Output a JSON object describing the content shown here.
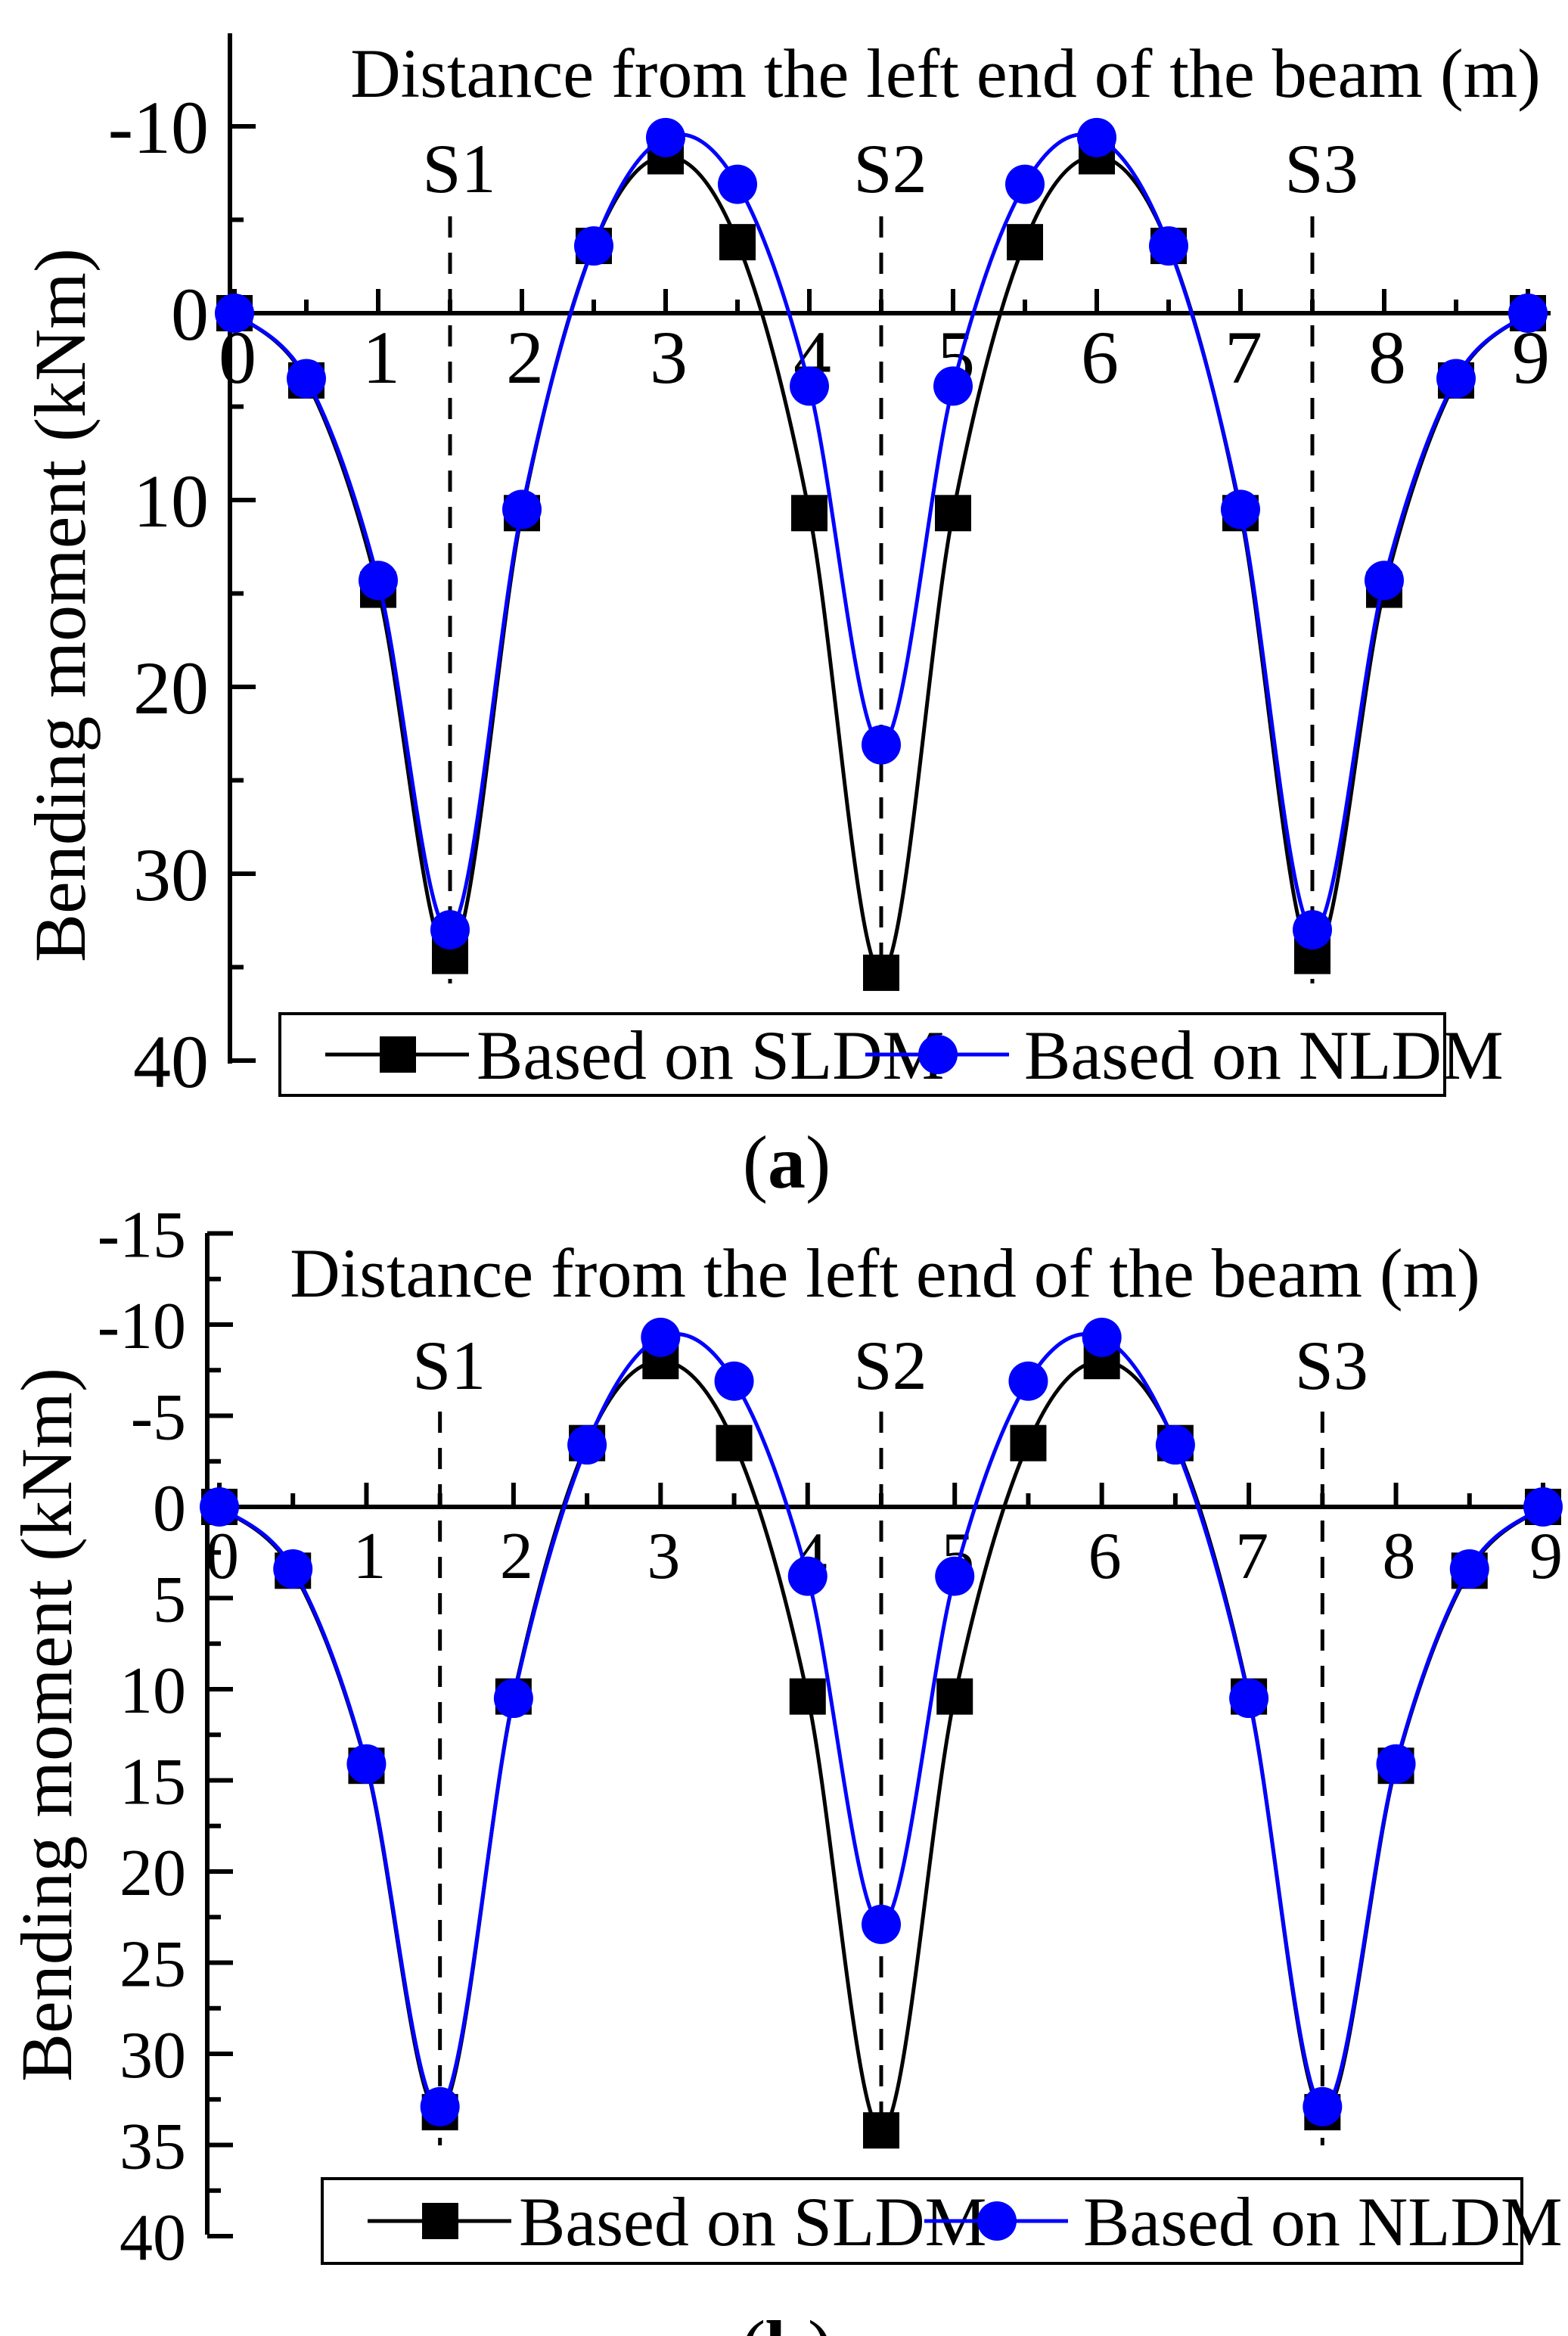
{
  "chart_data": [
    {
      "type": "line",
      "panel_label": "a",
      "title": "Distance from the left end of the beam (m)",
      "xlabel": "Distance from the left end of the beam (m)",
      "ylabel": "Bending moment (kNm)",
      "xlim": [
        0,
        9
      ],
      "ylim": [
        -15,
        40
      ],
      "y_inverted": true,
      "xticks": [
        "0",
        "1",
        "2",
        "3",
        "4",
        "5",
        "6",
        "7",
        "8",
        "9"
      ],
      "yticks": [
        {
          "value": -10,
          "label": "-10"
        },
        {
          "value": 0,
          "label": "0"
        },
        {
          "value": 10,
          "label": "10"
        },
        {
          "value": 20,
          "label": "20"
        },
        {
          "value": 30,
          "label": "30"
        },
        {
          "value": 40,
          "label": "40"
        }
      ],
      "supports": [
        {
          "name": "S1",
          "x": 1.5
        },
        {
          "name": "S2",
          "x": 4.5
        },
        {
          "name": "S3",
          "x": 7.5
        }
      ],
      "series": [
        {
          "name": "Based on SLDM",
          "color": "#000000",
          "marker": "square",
          "x": [
            0,
            0.5,
            1,
            1.5,
            2,
            2.5,
            3,
            3.5,
            4,
            4.5,
            5,
            5.5,
            6,
            6.5,
            7,
            7.5,
            8,
            8.5,
            9
          ],
          "y": [
            0,
            3.6,
            14.8,
            34.4,
            10.7,
            -3.6,
            -8.4,
            -3.8,
            10.7,
            35.3,
            10.7,
            -3.8,
            -8.4,
            -3.6,
            10.7,
            34.4,
            14.8,
            3.6,
            0
          ]
        },
        {
          "name": "Based on NLDM",
          "color": "#0000ff",
          "marker": "circle",
          "x": [
            0,
            0.5,
            1,
            1.5,
            2,
            2.5,
            3,
            3.5,
            4,
            4.5,
            5,
            5.5,
            6,
            6.5,
            7,
            7.5,
            8,
            8.5,
            9
          ],
          "y": [
            0,
            3.5,
            14.3,
            33.0,
            10.5,
            -3.6,
            -9.4,
            -6.9,
            3.9,
            23.1,
            3.9,
            -6.9,
            -9.4,
            -3.6,
            10.5,
            33.0,
            14.3,
            3.5,
            0
          ]
        }
      ]
    },
    {
      "type": "line",
      "panel_label": "b",
      "title": "Distance from the left end of the beam (m)",
      "xlabel": "Distance from the left end of the beam (m)",
      "ylabel": "Bending moment (kNm)",
      "xlim": [
        0,
        9
      ],
      "ylim": [
        -15,
        40
      ],
      "y_inverted": true,
      "xticks": [
        "0",
        "1",
        "2",
        "3",
        "4",
        "5",
        "6",
        "7",
        "8",
        "9"
      ],
      "yticks": [
        {
          "value": -15,
          "label": "-15"
        },
        {
          "value": -10,
          "label": "-10"
        },
        {
          "value": -5,
          "label": "-5"
        },
        {
          "value": 0,
          "label": "0"
        },
        {
          "value": 5,
          "label": "5"
        },
        {
          "value": 10,
          "label": "10"
        },
        {
          "value": 15,
          "label": "15"
        },
        {
          "value": 20,
          "label": "20"
        },
        {
          "value": 25,
          "label": "25"
        },
        {
          "value": 30,
          "label": "30"
        },
        {
          "value": 35,
          "label": "35"
        },
        {
          "value": 40,
          "label": "40"
        }
      ],
      "supports": [
        {
          "name": "S1",
          "x": 1.5
        },
        {
          "name": "S2",
          "x": 4.5
        },
        {
          "name": "S3",
          "x": 7.5
        }
      ],
      "series": [
        {
          "name": "Based on SLDM",
          "color": "#000000",
          "marker": "square",
          "x": [
            0,
            0.5,
            1,
            1.5,
            2,
            2.5,
            3,
            3.5,
            4,
            4.5,
            5,
            5.5,
            6,
            6.5,
            7,
            7.5,
            8,
            8.5,
            9
          ],
          "y": [
            0,
            3.5,
            14.2,
            33.2,
            10.4,
            -3.5,
            -8.0,
            -3.5,
            10.4,
            34.2,
            10.4,
            -3.5,
            -8.0,
            -3.5,
            10.4,
            33.2,
            14.2,
            3.5,
            0
          ]
        },
        {
          "name": "Based on NLDM",
          "color": "#0000ff",
          "marker": "circle",
          "x": [
            0,
            0.5,
            1,
            1.5,
            2,
            2.5,
            3,
            3.5,
            4,
            4.5,
            5,
            5.5,
            6,
            6.5,
            7,
            7.5,
            8,
            8.5,
            9
          ],
          "y": [
            0,
            3.4,
            14.1,
            32.9,
            10.5,
            -3.4,
            -9.3,
            -6.9,
            3.8,
            22.9,
            3.8,
            -6.9,
            -9.3,
            -3.4,
            10.5,
            32.9,
            14.1,
            3.4,
            0
          ]
        }
      ]
    }
  ]
}
